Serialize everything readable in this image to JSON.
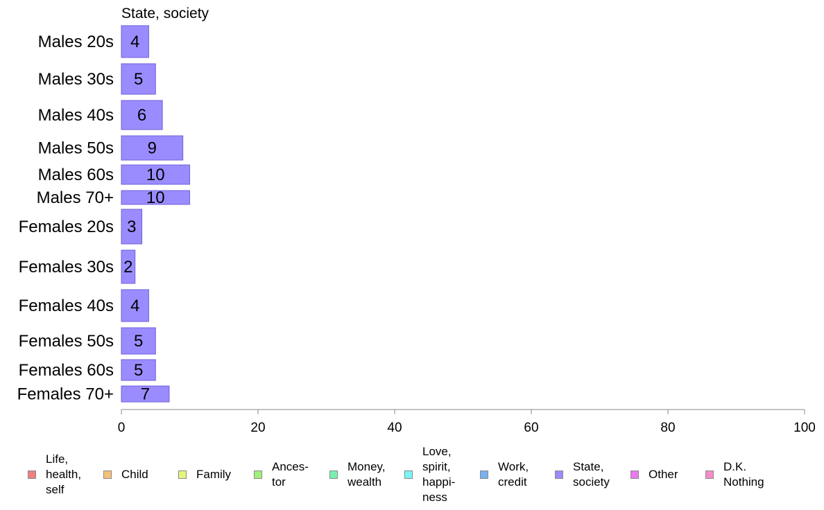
{
  "chart_data": {
    "type": "bar",
    "orientation": "horizontal",
    "title": "State, society",
    "categories": [
      "Males 20s",
      "Males 30s",
      "Males 40s",
      "Males 50s",
      "Males 60s",
      "Males 70+",
      "Females 20s",
      "Females 30s",
      "Females 40s",
      "Females 50s",
      "Females 60s",
      "Females 70+"
    ],
    "series": [
      {
        "name": "State, society",
        "color": "#9a8cff",
        "values": [
          4,
          5,
          6,
          9,
          10,
          10,
          3,
          2,
          4,
          5,
          5,
          7
        ]
      }
    ],
    "xlim": [
      0,
      100
    ],
    "xticks": [
      0,
      20,
      40,
      60,
      80,
      100
    ],
    "grid": false,
    "legend_position": "bottom",
    "legend": [
      {
        "label": "Life,\nhealth,\nself",
        "color": "#f08080"
      },
      {
        "label": "Child",
        "color": "#f5c07a"
      },
      {
        "label": "Family",
        "color": "#e6f57a"
      },
      {
        "label": "Ances-\ntor",
        "color": "#a0f07a"
      },
      {
        "label": "Money,\nwealth",
        "color": "#7af0b0"
      },
      {
        "label": "Love,\nspirit,\nhappi-\nness",
        "color": "#7af5f5"
      },
      {
        "label": "Work,\ncredit",
        "color": "#7ab0f0"
      },
      {
        "label": "State,\nsociety",
        "color": "#9a8cff"
      },
      {
        "label": "Other",
        "color": "#e87af0"
      },
      {
        "label": "D.K.\nNothing",
        "color": "#f58cc8"
      }
    ]
  }
}
